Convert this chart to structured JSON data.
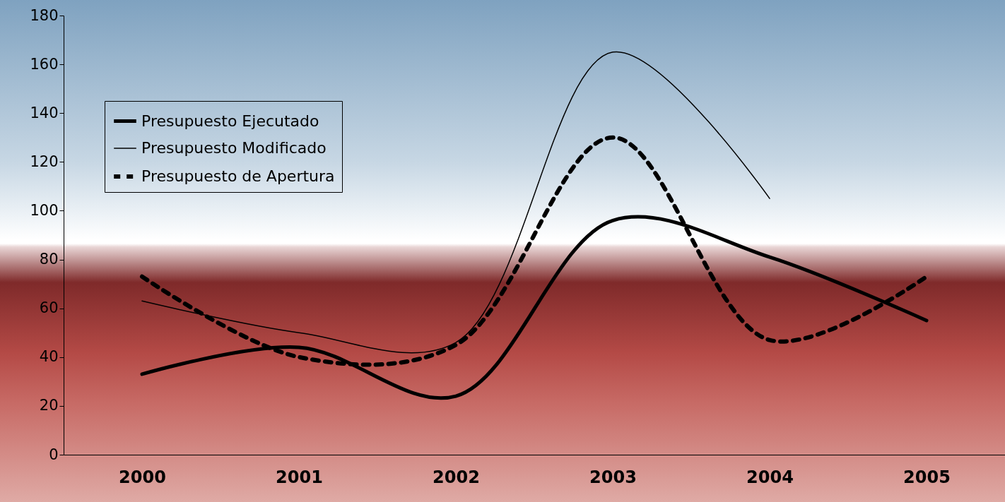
{
  "chart_data": {
    "type": "line",
    "categories": [
      "2000",
      "2001",
      "2002",
      "2003",
      "2004",
      "2005"
    ],
    "series": [
      {
        "name": "Presupuesto Ejecutado",
        "color": "#000000",
        "line_style": "solid",
        "values": [
          33,
          44,
          24,
          96,
          81,
          55
        ]
      },
      {
        "name": "Presupuesto Modificado",
        "color": "#000000",
        "line_style": "solid",
        "values": [
          63,
          50,
          46,
          165,
          105,
          null
        ]
      },
      {
        "name": "Presupuesto de Apertura",
        "color": "#000000",
        "line_style": "dashed",
        "values": [
          73,
          40,
          45,
          130,
          47,
          73
        ]
      }
    ],
    "ylim": [
      0,
      180
    ],
    "yticks": [
      0,
      20,
      40,
      60,
      80,
      100,
      120,
      140,
      160,
      180
    ],
    "grid": false,
    "legend": "top left",
    "marker": "none"
  }
}
